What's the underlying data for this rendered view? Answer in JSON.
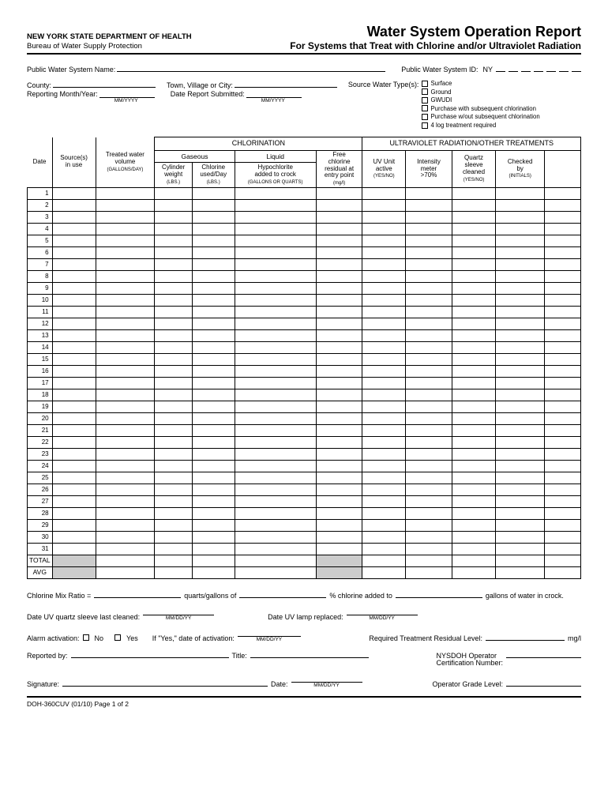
{
  "header": {
    "dept": "NEW YORK STATE DEPARTMENT OF HEALTH",
    "bureau": "Bureau of Water Supply Protection",
    "title": "Water System Operation Report",
    "subtitle": "For Systems that Treat with Chlorine and/or Ultraviolet Radiation"
  },
  "fields": {
    "pws_name_label": "Public Water System Name:",
    "pws_id_label": "Public Water System ID:",
    "pws_id_prefix": "NY",
    "county_label": "County:",
    "town_label": "Town, Village or City:",
    "source_type_label": "Source Water Type(s):",
    "reporting_label": "Reporting Month/Year:",
    "reporting_hint": "MM/YYYY",
    "date_submitted_label": "Date Report Submitted:",
    "date_submitted_hint": "MM/YYYY"
  },
  "source_types": [
    "Surface",
    "Ground",
    "GWUDI",
    "Purchase with subsequent chlorination",
    "Purchase w/out subsequent chlorination",
    "4 log treatment required"
  ],
  "table": {
    "chlor_group": "CHLORINATION",
    "uv_group": "ULTRAVIOLET RADIATION/OTHER TREATMENTS",
    "gaseous": "Gaseous",
    "liquid": "Liquid",
    "date": "Date",
    "sources_in_use": "Source(s)\nin use",
    "treated_water": {
      "main": "Treated water\nvolume",
      "sub": "(GALLONS/DAY)"
    },
    "cyl_weight": {
      "main": "Cylinder\nweight",
      "sub": "(LBS.)"
    },
    "chlor_used": {
      "main": "Chlorine\nused/Day",
      "sub": "(LBS.)"
    },
    "hypo": {
      "main": "Hypochlorite\nadded to crock",
      "sub": "(GALLONS OR QUARTS)"
    },
    "free_chlor": {
      "main": "Free\nchlorine\nresidual at\nentry point",
      "sub": "(mg/l)"
    },
    "uv_active": {
      "main": "UV Unit\nactive",
      "sub": "(YES/NO)"
    },
    "intensity": {
      "main": "Intensity\nmeter\n>70%",
      "sub": ""
    },
    "quartz": {
      "main": "Quartz\nsleeve\ncleaned",
      "sub": "(YES/NO)"
    },
    "checked": {
      "main": "Checked\nby",
      "sub": "(INITIALS)"
    },
    "days": 31,
    "total": "TOTAL",
    "avg": "AVG"
  },
  "bottom": {
    "mix_ratio": "Chlorine Mix Ratio =",
    "qg_of": "quarts/gallons of",
    "pct_added": "% chlorine added to",
    "gallons_crock": "gallons of water in crock.",
    "uv_cleaned": "Date UV quartz sleeve last cleaned:",
    "uv_replaced": "Date UV lamp replaced:",
    "mmddyy": "MM/DD/YY",
    "alarm": "Alarm activation:",
    "no": "No",
    "yes": "Yes",
    "if_yes": "If \"Yes,\" date of activation:",
    "req_residual": "Required Treatment Residual Level:",
    "mgl": "mg/l",
    "reported_by": "Reported by:",
    "title_lbl": "Title:",
    "nysdoh": "NYSDOH Operator\nCertification Number:",
    "signature": "Signature:",
    "date_lbl": "Date:",
    "grade": "Operator Grade Level:"
  },
  "footer": "DOH-360CUV (01/10) Page 1 of 2",
  "colors": {
    "gray": "#cccccc",
    "black": "#000000",
    "bg": "#ffffff"
  }
}
